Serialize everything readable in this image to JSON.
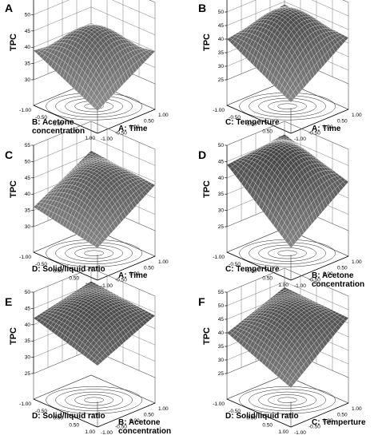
{
  "chart_data": [
    {
      "type": "surface",
      "panel": "A",
      "zlabel": "TPC",
      "xlabel": "A: Time",
      "ylabel": "B: Acetone concentration",
      "ylabel_lines": [
        "B: Acetone",
        "concentration"
      ],
      "xticks": [
        "-1.00",
        "-0.50",
        "0.00",
        "0.50",
        "1.00"
      ],
      "yticks": [
        "-1.00",
        "-0.50",
        "0.00",
        "0.50",
        "1.00"
      ],
      "zticks": [
        "30",
        "35",
        "40",
        "45",
        "50",
        "55"
      ],
      "zlim": [
        30,
        55
      ],
      "corners": {
        "front": 29,
        "right": 40,
        "back": 37,
        "left": 39
      },
      "peak": 47
    },
    {
      "type": "surface",
      "panel": "B",
      "zlabel": "TPC",
      "xlabel": "A: Time",
      "ylabel": "C: Temperture",
      "ylabel_lines": [
        "C: Temperture"
      ],
      "xticks": [
        "-1.00",
        "-0.50",
        "0.00",
        "0.50",
        "1.00"
      ],
      "yticks": [
        "-1.00",
        "-0.50",
        "0.00",
        "0.50",
        "1.00"
      ],
      "zticks": [
        "25",
        "30",
        "35",
        "40",
        "45",
        "50",
        "55"
      ],
      "zlim": [
        25,
        55
      ],
      "corners": {
        "front": 27,
        "right": 42,
        "back": 44,
        "left": 40
      },
      "peak": 50
    },
    {
      "type": "surface",
      "panel": "C",
      "zlabel": "TPC",
      "xlabel": "A: Time",
      "ylabel": "D: Solid/liquid ratio",
      "ylabel_lines": [
        "D: Solid/liquid ratio"
      ],
      "xticks": [
        "-1.00",
        "-0.50",
        "0.00",
        "0.50",
        "1.00"
      ],
      "yticks": [
        "-1.00",
        "-0.50",
        "0.00",
        "0.50",
        "1.00"
      ],
      "zticks": [
        "30",
        "35",
        "40",
        "45",
        "50",
        "55"
      ],
      "zlim": [
        30,
        55
      ],
      "corners": {
        "front": 32,
        "right": 44,
        "back": 46,
        "left": 36
      },
      "peak": 47
    },
    {
      "type": "surface",
      "panel": "D",
      "zlabel": "TPC",
      "xlabel": "B: Acetone concentration",
      "ylabel": "C: Temperture",
      "xlabel_lines": [
        "B: Acetone",
        "concentration"
      ],
      "ylabel_lines": [
        "C: Temperture"
      ],
      "xticks": [
        "-1.00",
        "-0.50",
        "0.00",
        "0.50",
        "1.00"
      ],
      "yticks": [
        "-1.00",
        "-0.50",
        "0.00",
        "0.50",
        "1.00"
      ],
      "zticks": [
        "25",
        "30",
        "35",
        "40",
        "45",
        "50"
      ],
      "zlim": [
        25,
        50
      ],
      "corners": {
        "front": 27,
        "right": 40,
        "back": 46,
        "left": 44
      },
      "peak": 48
    },
    {
      "type": "surface",
      "panel": "E",
      "zlabel": "TPC",
      "xlabel": "B: Acetone concentration",
      "ylabel": "D: Solid/liquid ratio",
      "xlabel_lines": [
        "B: Acetone",
        "concentration"
      ],
      "ylabel_lines": [
        "D: Solid/liquid ratio"
      ],
      "xticks": [
        "-1.00",
        "-0.50",
        "0.00",
        "0.50",
        "1.00"
      ],
      "yticks": [
        "-1.00",
        "-0.50",
        "0.00",
        "0.50",
        "1.00"
      ],
      "zticks": [
        "25",
        "30",
        "35",
        "40",
        "45",
        "50"
      ],
      "zlim": [
        25,
        50
      ],
      "corners": {
        "front": 36,
        "right": 44,
        "back": 46,
        "left": 42
      },
      "peak": 47
    },
    {
      "type": "surface",
      "panel": "F",
      "zlabel": "TPC",
      "xlabel": "C: Temperture",
      "ylabel": "D: Solid/liquid ratio",
      "ylabel_lines": [
        "D: Solid/liquid ratio"
      ],
      "xticks": [
        "-1.00",
        "-0.50",
        "0.00",
        "0.50",
        "1.00"
      ],
      "yticks": [
        "-1.00",
        "-0.50",
        "0.00",
        "0.50",
        "1.00"
      ],
      "zticks": [
        "25",
        "30",
        "35",
        "40",
        "45",
        "50",
        "55"
      ],
      "zlim": [
        25,
        55
      ],
      "corners": {
        "front": 30,
        "right": 47,
        "back": 48,
        "left": 40
      },
      "peak": 48
    }
  ]
}
